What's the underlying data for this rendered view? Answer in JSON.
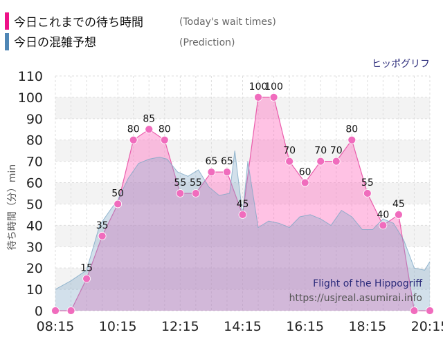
{
  "legend": {
    "items": [
      {
        "name": "今日これまでの待ち時間",
        "note": "(Today's wait times)",
        "color": "#ee1188"
      },
      {
        "name": "今日の混雑予想",
        "note": "(Prediction)",
        "color": "#4f86b5"
      }
    ]
  },
  "chart_data": {
    "type": "area",
    "title": "",
    "top_right_label": "ヒッポグリフ",
    "attraction_name": "Flight of the Hippogriff",
    "source_url": "https://usjreal.asumirai.info",
    "ylabel": "待ち時間（分）min",
    "xlabel": "",
    "x_ticks": [
      "08:15",
      "10:15",
      "12:15",
      "14:15",
      "16:15",
      "18:15",
      "20:15"
    ],
    "ylim": [
      0,
      110
    ],
    "y_ticks": [
      0,
      10,
      20,
      30,
      40,
      50,
      60,
      70,
      80,
      90,
      100,
      110
    ],
    "grid": true,
    "legend_position": "top-left",
    "series": [
      {
        "name": "今日これまでの待ち時間",
        "color": "#ff4fb0",
        "x": [
          "08:15",
          "08:45",
          "09:15",
          "09:45",
          "10:15",
          "10:45",
          "11:15",
          "11:45",
          "12:15",
          "12:45",
          "13:15",
          "13:45",
          "14:15",
          "14:45",
          "15:15",
          "15:45",
          "16:15",
          "16:45",
          "17:15",
          "17:45",
          "18:15",
          "18:45",
          "19:15",
          "19:45",
          "20:15"
        ],
        "values": [
          0,
          0,
          15,
          35,
          50,
          80,
          85,
          80,
          55,
          55,
          65,
          65,
          45,
          100,
          100,
          70,
          60,
          70,
          70,
          80,
          55,
          40,
          45,
          0,
          0
        ],
        "data_labels": [
          null,
          null,
          "15",
          "35",
          "50",
          "80",
          "85",
          "80",
          "55",
          "55",
          "65",
          "65",
          "45",
          "100",
          "100",
          "70",
          "60",
          "70",
          "70",
          "80",
          "55",
          "40",
          "45",
          null,
          null
        ]
      },
      {
        "name": "今日の混雑予想",
        "color": "#7da7c6",
        "x": [
          "08:15",
          "08:45",
          "09:15",
          "09:40",
          "10:00",
          "10:15",
          "10:35",
          "10:55",
          "11:15",
          "11:35",
          "11:50",
          "12:10",
          "12:30",
          "12:50",
          "13:10",
          "13:30",
          "13:50",
          "14:00",
          "14:15",
          "14:25",
          "14:45",
          "15:05",
          "15:25",
          "15:45",
          "16:05",
          "16:25",
          "16:45",
          "17:05",
          "17:25",
          "17:45",
          "18:05",
          "18:25",
          "18:45",
          "19:05",
          "19:25",
          "19:45",
          "20:05",
          "20:15"
        ],
        "values": [
          10,
          14,
          19,
          40,
          47,
          52,
          62,
          69,
          71,
          72,
          71,
          65,
          63,
          66,
          58,
          54,
          55,
          75,
          45,
          70,
          39,
          42,
          41,
          39,
          44,
          45,
          43,
          40,
          47,
          44,
          38,
          38,
          43,
          41,
          33,
          20,
          19,
          23
        ]
      }
    ]
  }
}
